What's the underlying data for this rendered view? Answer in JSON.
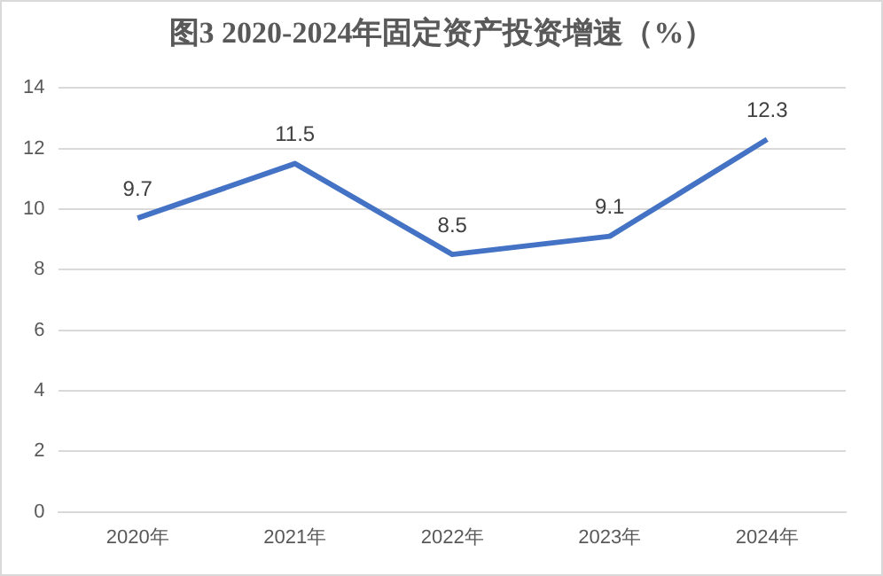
{
  "chart_data": {
    "type": "line",
    "title": "图3 2020-2024年固定资产投资增速（%）",
    "categories": [
      "2020年",
      "2021年",
      "2022年",
      "2023年",
      "2024年"
    ],
    "series": [
      {
        "color": "#4472c4",
        "values": [
          9.7,
          11.5,
          8.5,
          9.1,
          12.3
        ]
      }
    ],
    "ylim": [
      0,
      14
    ],
    "yticks": [
      0,
      2,
      4,
      6,
      8,
      10,
      12,
      14
    ],
    "grid": "y",
    "legend": false,
    "marker": "none",
    "line_style": "solid",
    "data_labels": true
  }
}
